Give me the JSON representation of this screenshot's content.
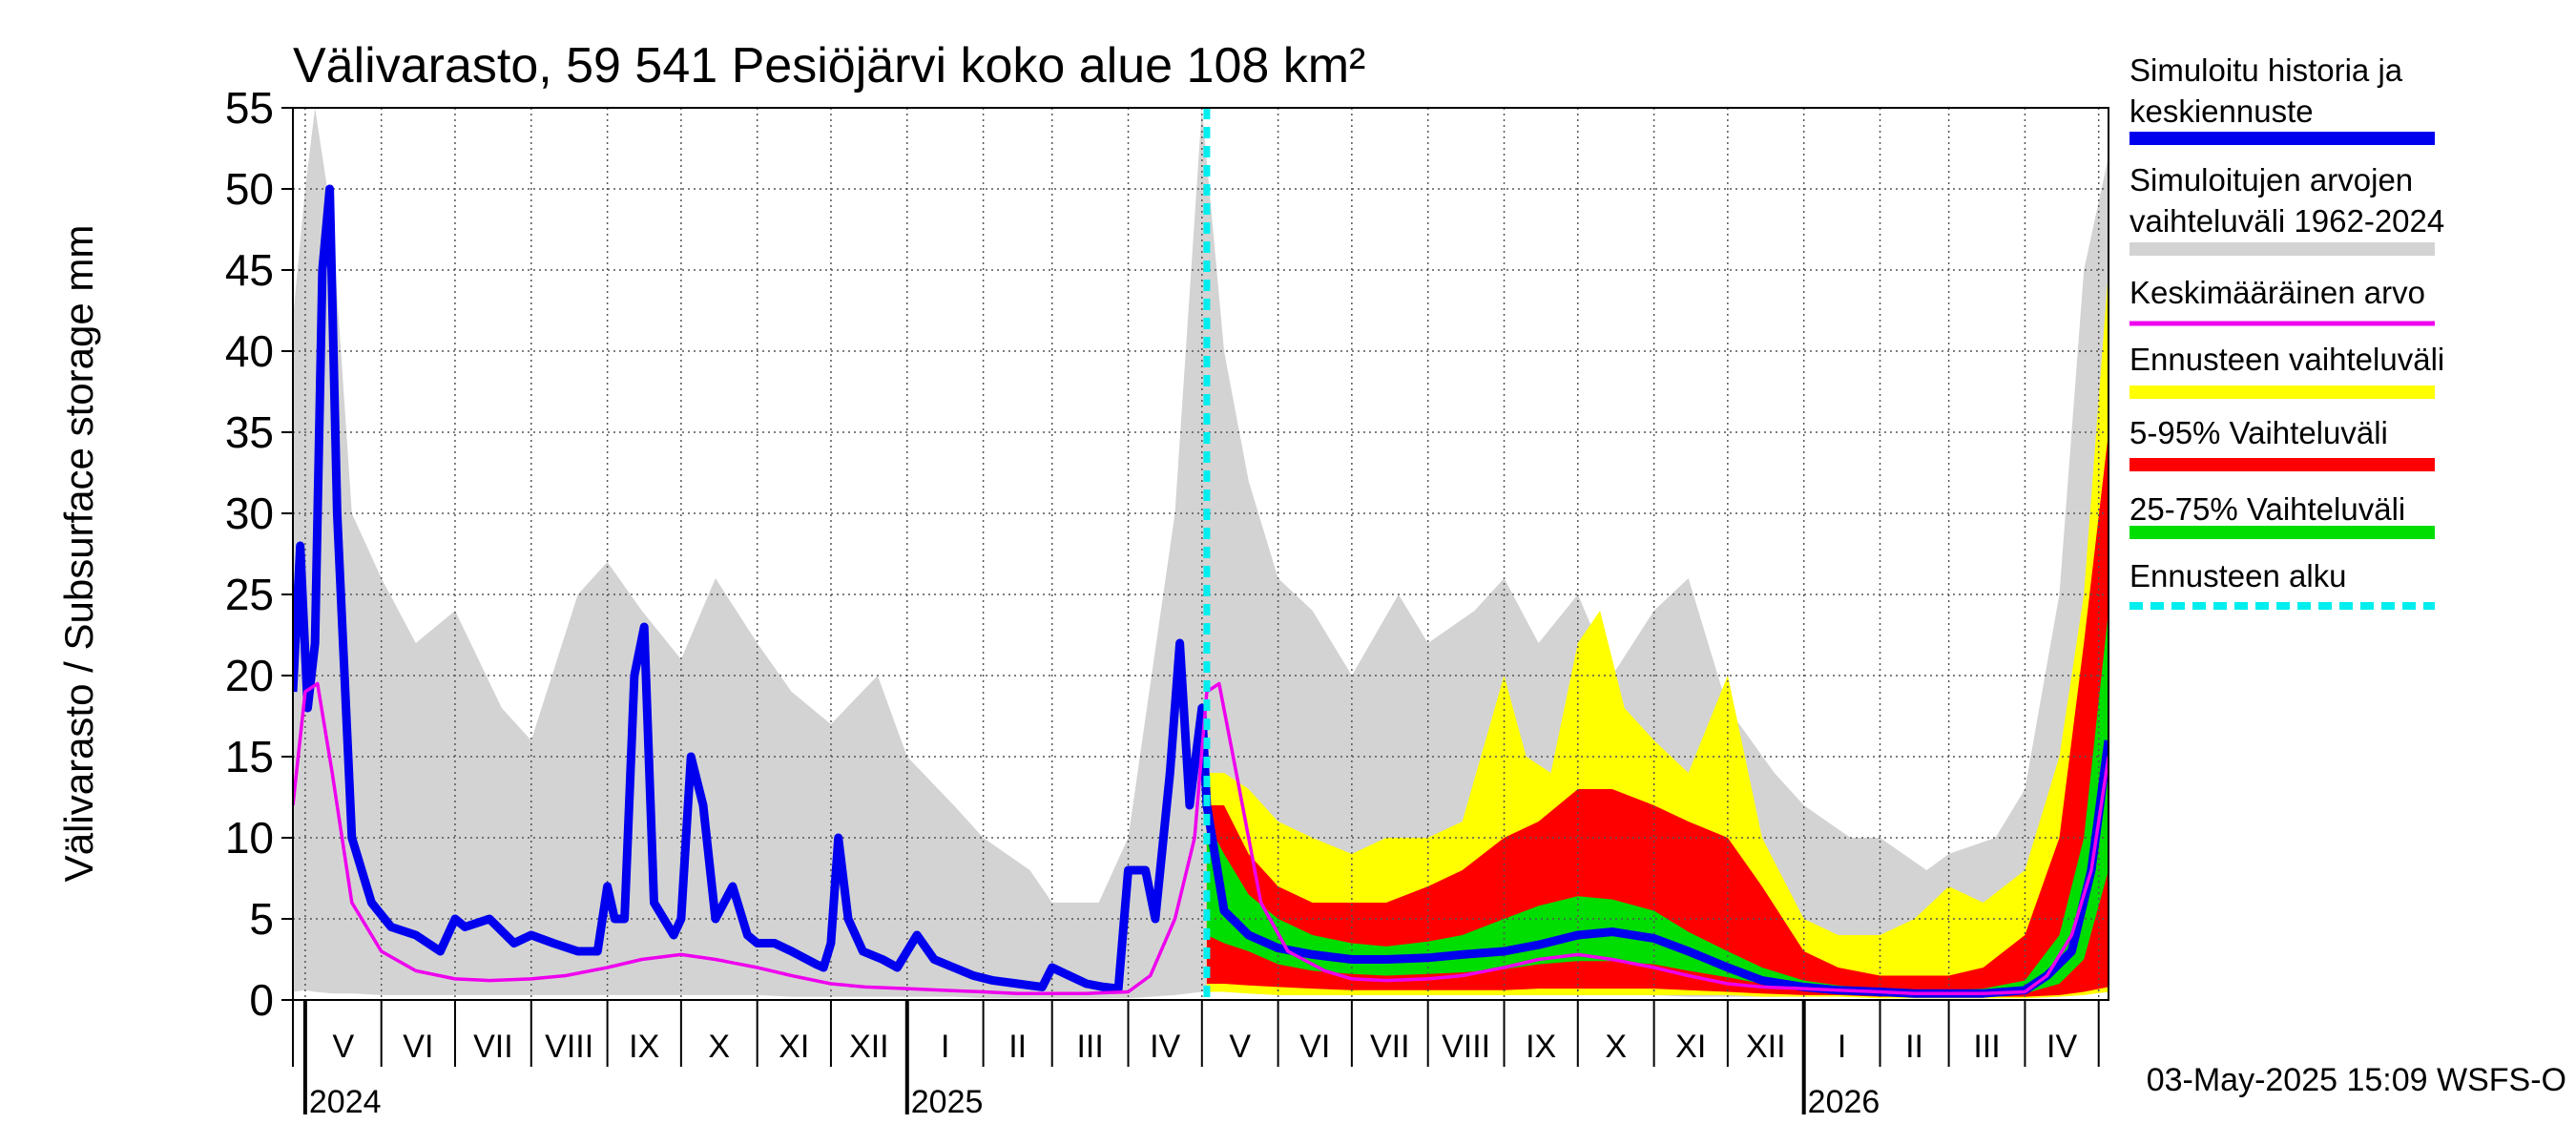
{
  "chart_data": {
    "type": "area",
    "title": "Välivarasto, 59 541 Pesiöjärvi koko alue 108 km²",
    "ylabel": "Välivarasto / Subsurface storage  mm",
    "ylim": [
      0,
      55
    ],
    "yticks": [
      0,
      5,
      10,
      15,
      20,
      25,
      30,
      35,
      40,
      45,
      50,
      55
    ],
    "xlim": [
      "2024-04-26",
      "2026-05-05"
    ],
    "grid": true,
    "legend_position": "right",
    "forecast_start": "2025-05-03",
    "months": [
      "V",
      "VI",
      "VII",
      "VIII",
      "IX",
      "X",
      "XI",
      "XII",
      "I",
      "II",
      "III",
      "IV",
      "V",
      "VI",
      "VII",
      "VIII",
      "IX",
      "X",
      "XI",
      "XII",
      "I",
      "II",
      "III",
      "IV"
    ],
    "month_starts": [
      "2024-05-01",
      "2024-06-01",
      "2024-07-01",
      "2024-08-01",
      "2024-09-01",
      "2024-10-01",
      "2024-11-01",
      "2024-12-01",
      "2025-01-01",
      "2025-02-01",
      "2025-03-01",
      "2025-04-01",
      "2025-05-01",
      "2025-06-01",
      "2025-07-01",
      "2025-08-01",
      "2025-09-01",
      "2025-10-01",
      "2025-11-01",
      "2025-12-01",
      "2026-01-01",
      "2026-02-01",
      "2026-03-01",
      "2026-04-01",
      "2026-05-01"
    ],
    "years": [
      {
        "label": "2024",
        "date": "2024-05-01"
      },
      {
        "label": "2025",
        "date": "2025-01-01"
      },
      {
        "label": "2026",
        "date": "2026-01-01"
      }
    ],
    "legend": [
      {
        "label": "Simuloitu historia ja keskiennuste",
        "color": "#0000ee"
      },
      {
        "label": "Simuloitujen arvojen vaihteluväli 1962-2024",
        "color": "#d3d3d3"
      },
      {
        "label": "Keskimääräinen arvo",
        "color": "#ee00ee"
      },
      {
        "label": "Ennusteen vaihteluväli",
        "color": "#ffff00"
      },
      {
        "label": "5-95% Vaihteluväli",
        "color": "#ff0000"
      },
      {
        "label": "25-75% Vaihteluväli",
        "color": "#00dd00"
      },
      {
        "label": "Ennusteen alku",
        "color": "#00eeee"
      }
    ],
    "series": [
      {
        "name": "Simuloitujen arvojen vaihteluväli 1962-2024",
        "kind": "band",
        "color": "#d3d3d3",
        "x": [
          "2024-04-26",
          "2024-05-01",
          "2024-05-05",
          "2024-05-12",
          "2024-05-20",
          "2024-06-01",
          "2024-06-15",
          "2024-07-01",
          "2024-07-20",
          "2024-08-01",
          "2024-08-20",
          "2024-09-01",
          "2024-09-15",
          "2024-10-01",
          "2024-10-15",
          "2024-11-01",
          "2024-11-15",
          "2024-12-01",
          "2024-12-20",
          "2025-01-01",
          "2025-01-20",
          "2025-02-01",
          "2025-02-20",
          "2025-03-01",
          "2025-03-20",
          "2025-04-01",
          "2025-04-20",
          "2025-05-01",
          "2025-05-10",
          "2025-05-20",
          "2025-06-01",
          "2025-06-15",
          "2025-07-01",
          "2025-07-20",
          "2025-08-01",
          "2025-08-20",
          "2025-09-01",
          "2025-09-15",
          "2025-10-01",
          "2025-10-15",
          "2025-11-01",
          "2025-11-15",
          "2025-12-01",
          "2025-12-20",
          "2026-01-01",
          "2026-01-20",
          "2026-02-01",
          "2026-02-20",
          "2026-03-01",
          "2026-03-20",
          "2026-04-01",
          "2026-04-15",
          "2026-04-25",
          "2026-05-05"
        ],
        "low": [
          0.5,
          0.6,
          0.5,
          0.4,
          0.4,
          0.3,
          0.3,
          0.3,
          0.3,
          0.3,
          0.3,
          0.3,
          0.3,
          0.3,
          0.3,
          0.3,
          0.2,
          0.2,
          0.2,
          0.2,
          0.2,
          0.1,
          0.1,
          0.1,
          0.1,
          0.1,
          0.3,
          0.5,
          0.5,
          0.4,
          0.3,
          0.3,
          0.3,
          0.3,
          0.3,
          0.3,
          0.3,
          0.3,
          0.3,
          0.3,
          0.3,
          0.2,
          0.2,
          0.2,
          0.2,
          0.2,
          0.1,
          0.1,
          0.1,
          0.1,
          0.1,
          0.2,
          0.3,
          0.5
        ],
        "high": [
          42,
          50,
          55,
          48,
          30,
          26,
          22,
          24,
          18,
          16,
          25,
          27,
          24,
          21,
          26,
          22,
          19,
          17,
          20,
          15,
          12,
          10,
          8,
          6,
          6,
          10,
          30,
          55,
          40,
          32,
          26,
          24,
          20,
          25,
          22,
          24,
          26,
          22,
          25,
          20,
          24,
          26,
          18,
          14,
          12,
          10,
          10,
          8,
          9,
          10,
          13,
          25,
          45,
          52
        ]
      },
      {
        "name": "Ennusteen vaihteluväli",
        "kind": "band",
        "color": "#ffff00",
        "x": [
          "2025-05-03",
          "2025-05-10",
          "2025-05-20",
          "2025-06-01",
          "2025-06-15",
          "2025-07-01",
          "2025-07-15",
          "2025-08-01",
          "2025-08-15",
          "2025-09-01",
          "2025-09-10",
          "2025-09-20",
          "2025-10-01",
          "2025-10-10",
          "2025-10-20",
          "2025-11-01",
          "2025-11-15",
          "2025-12-01",
          "2025-12-15",
          "2026-01-01",
          "2026-01-15",
          "2026-02-01",
          "2026-02-15",
          "2026-03-01",
          "2026-03-15",
          "2026-04-01",
          "2026-04-15",
          "2026-04-25",
          "2026-05-05"
        ],
        "low": [
          0.5,
          0.5,
          0.4,
          0.3,
          0.3,
          0.3,
          0.3,
          0.3,
          0.3,
          0.3,
          0.3,
          0.3,
          0.3,
          0.3,
          0.3,
          0.3,
          0.3,
          0.3,
          0.2,
          0.2,
          0.2,
          0.1,
          0.1,
          0.1,
          0.1,
          0.1,
          0.2,
          0.3,
          0.5
        ],
        "high": [
          14,
          14,
          13,
          11,
          10,
          9,
          10,
          10,
          11,
          20,
          15,
          14,
          22,
          24,
          18,
          16,
          14,
          20,
          10,
          5,
          4,
          4,
          5,
          7,
          6,
          8,
          15,
          25,
          45
        ]
      },
      {
        "name": "5-95% Vaihteluväli",
        "kind": "band",
        "color": "#ff0000",
        "x": [
          "2025-05-03",
          "2025-05-10",
          "2025-05-20",
          "2025-06-01",
          "2025-06-15",
          "2025-07-01",
          "2025-07-15",
          "2025-08-01",
          "2025-08-15",
          "2025-09-01",
          "2025-09-15",
          "2025-10-01",
          "2025-10-15",
          "2025-11-01",
          "2025-11-15",
          "2025-12-01",
          "2025-12-15",
          "2026-01-01",
          "2026-01-15",
          "2026-02-01",
          "2026-02-15",
          "2026-03-01",
          "2026-03-15",
          "2026-04-01",
          "2026-04-15",
          "2026-04-25",
          "2026-05-05"
        ],
        "low": [
          1,
          1,
          0.9,
          0.8,
          0.7,
          0.6,
          0.6,
          0.6,
          0.6,
          0.6,
          0.7,
          0.7,
          0.7,
          0.7,
          0.6,
          0.5,
          0.4,
          0.3,
          0.3,
          0.2,
          0.2,
          0.2,
          0.2,
          0.2,
          0.3,
          0.5,
          0.8
        ],
        "high": [
          12,
          12,
          9,
          7,
          6,
          6,
          6,
          7,
          8,
          10,
          11,
          13,
          13,
          12,
          11,
          10,
          7,
          3,
          2,
          1.5,
          1.5,
          1.5,
          2,
          4,
          10,
          22,
          35
        ]
      },
      {
        "name": "25-75% Vaihteluväli",
        "kind": "band",
        "color": "#00dd00",
        "x": [
          "2025-05-03",
          "2025-05-10",
          "2025-05-20",
          "2025-06-01",
          "2025-06-15",
          "2025-07-01",
          "2025-07-15",
          "2025-08-01",
          "2025-08-15",
          "2025-09-01",
          "2025-09-15",
          "2025-10-01",
          "2025-10-15",
          "2025-11-01",
          "2025-11-15",
          "2025-12-01",
          "2025-12-15",
          "2026-01-01",
          "2026-01-15",
          "2026-02-01",
          "2026-02-15",
          "2026-03-01",
          "2026-03-15",
          "2026-04-01",
          "2026-04-15",
          "2026-04-25",
          "2026-05-05"
        ],
        "low": [
          4,
          3.5,
          3,
          2.2,
          1.8,
          1.6,
          1.5,
          1.6,
          1.7,
          1.9,
          2.2,
          2.4,
          2.4,
          2.2,
          1.8,
          1.4,
          1,
          0.7,
          0.5,
          0.4,
          0.3,
          0.3,
          0.3,
          0.4,
          1,
          2.5,
          8
        ],
        "high": [
          11,
          9,
          6.5,
          5,
          4,
          3.5,
          3.3,
          3.6,
          4,
          5,
          5.8,
          6.4,
          6.2,
          5.5,
          4.2,
          3,
          2,
          1.2,
          0.9,
          0.7,
          0.6,
          0.6,
          0.7,
          1.2,
          4,
          10,
          24
        ]
      },
      {
        "name": "Simuloitu historia ja keskiennuste",
        "kind": "line",
        "color": "#0000ee",
        "width": 9,
        "x": [
          "2024-04-26",
          "2024-04-29",
          "2024-05-02",
          "2024-05-05",
          "2024-05-08",
          "2024-05-11",
          "2024-05-14",
          "2024-05-20",
          "2024-05-28",
          "2024-06-05",
          "2024-06-15",
          "2024-06-25",
          "2024-07-01",
          "2024-07-05",
          "2024-07-15",
          "2024-07-25",
          "2024-08-01",
          "2024-08-10",
          "2024-08-20",
          "2024-08-28",
          "2024-09-01",
          "2024-09-04",
          "2024-09-08",
          "2024-09-12",
          "2024-09-16",
          "2024-09-20",
          "2024-09-28",
          "2024-10-01",
          "2024-10-05",
          "2024-10-10",
          "2024-10-15",
          "2024-10-22",
          "2024-10-28",
          "2024-11-01",
          "2024-11-08",
          "2024-11-15",
          "2024-11-25",
          "2024-11-28",
          "2024-12-01",
          "2024-12-04",
          "2024-12-08",
          "2024-12-14",
          "2024-12-22",
          "2024-12-28",
          "2025-01-05",
          "2025-01-12",
          "2025-01-20",
          "2025-01-28",
          "2025-02-05",
          "2025-02-15",
          "2025-02-25",
          "2025-03-01",
          "2025-03-08",
          "2025-03-15",
          "2025-03-22",
          "2025-03-28",
          "2025-04-01",
          "2025-04-08",
          "2025-04-12",
          "2025-04-18",
          "2025-04-22",
          "2025-04-26",
          "2025-05-01",
          "2025-05-03",
          "2025-05-10",
          "2025-05-20",
          "2025-06-01",
          "2025-06-15",
          "2025-07-01",
          "2025-07-15",
          "2025-08-01",
          "2025-08-15",
          "2025-09-01",
          "2025-09-15",
          "2025-10-01",
          "2025-10-15",
          "2025-11-01",
          "2025-11-15",
          "2025-12-01",
          "2025-12-15",
          "2026-01-01",
          "2026-01-15",
          "2026-02-01",
          "2026-02-15",
          "2026-03-01",
          "2026-03-15",
          "2026-04-01",
          "2026-04-10",
          "2026-04-20",
          "2026-04-28",
          "2026-05-05"
        ],
        "y": [
          19,
          28,
          18,
          22,
          45,
          50,
          30,
          10,
          6,
          4.5,
          4,
          3,
          5,
          4.5,
          5,
          3.5,
          4,
          3.5,
          3,
          3,
          7,
          5,
          5,
          20,
          23,
          6,
          4,
          5,
          15,
          12,
          5,
          7,
          4,
          3.5,
          3.5,
          3,
          2.2,
          2,
          3.5,
          10,
          5,
          3,
          2.5,
          2,
          4,
          2.5,
          2,
          1.5,
          1.2,
          1,
          0.8,
          2,
          1.5,
          1,
          0.8,
          0.7,
          8,
          8,
          5,
          14,
          22,
          12,
          18,
          12,
          5.5,
          4,
          3.2,
          2.8,
          2.5,
          2.5,
          2.6,
          2.8,
          3,
          3.4,
          4,
          4.2,
          3.8,
          3,
          2,
          1.2,
          0.8,
          0.6,
          0.5,
          0.4,
          0.4,
          0.4,
          0.6,
          1.5,
          3,
          8,
          16
        ]
      },
      {
        "name": "Keskimääräinen arvo",
        "kind": "line",
        "color": "#ee00ee",
        "width": 3.5,
        "x": [
          "2024-04-26",
          "2024-05-01",
          "2024-05-06",
          "2024-05-12",
          "2024-05-20",
          "2024-06-01",
          "2024-06-15",
          "2024-07-01",
          "2024-07-15",
          "2024-08-01",
          "2024-08-15",
          "2024-09-01",
          "2024-09-15",
          "2024-10-01",
          "2024-10-15",
          "2024-11-01",
          "2024-11-15",
          "2024-12-01",
          "2024-12-15",
          "2025-01-01",
          "2025-01-15",
          "2025-02-01",
          "2025-02-15",
          "2025-03-01",
          "2025-03-15",
          "2025-04-01",
          "2025-04-10",
          "2025-04-20",
          "2025-04-28",
          "2025-05-03",
          "2025-05-08",
          "2025-05-15",
          "2025-05-25",
          "2025-06-05",
          "2025-06-20",
          "2025-07-01",
          "2025-07-15",
          "2025-08-01",
          "2025-08-15",
          "2025-09-01",
          "2025-09-15",
          "2025-10-01",
          "2025-10-15",
          "2025-11-01",
          "2025-11-15",
          "2025-12-01",
          "2025-12-15",
          "2026-01-01",
          "2026-01-15",
          "2026-02-01",
          "2026-02-15",
          "2026-03-01",
          "2026-03-15",
          "2026-04-01",
          "2026-04-10",
          "2026-04-20",
          "2026-04-28",
          "2026-05-05"
        ],
        "y": [
          12,
          19,
          19.5,
          14,
          6,
          3,
          1.8,
          1.3,
          1.2,
          1.3,
          1.5,
          2,
          2.5,
          2.8,
          2.5,
          2,
          1.5,
          1,
          0.8,
          0.7,
          0.6,
          0.5,
          0.4,
          0.4,
          0.4,
          0.5,
          1.5,
          5,
          10,
          19,
          19.5,
          14,
          6,
          3,
          1.8,
          1.3,
          1.2,
          1.3,
          1.5,
          2,
          2.5,
          2.8,
          2.5,
          2,
          1.5,
          1,
          0.8,
          0.7,
          0.6,
          0.5,
          0.4,
          0.4,
          0.4,
          0.5,
          1.5,
          4,
          8,
          15
        ]
      }
    ]
  },
  "footer": {
    "timestamp": "03-May-2025 15:09 WSFS-O"
  }
}
